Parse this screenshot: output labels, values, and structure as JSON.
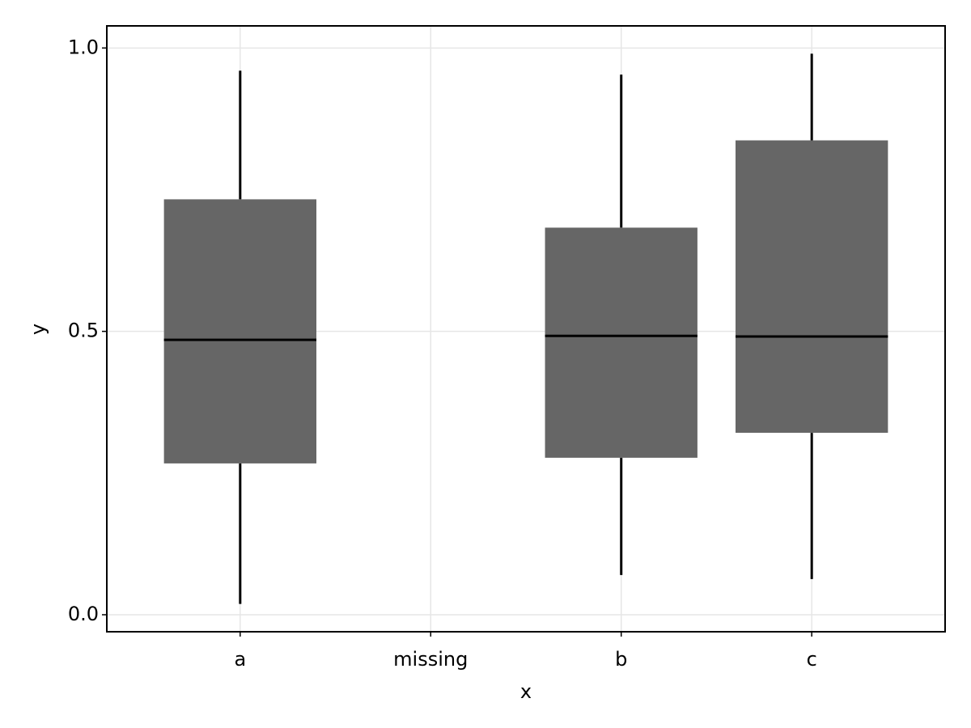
{
  "chart_data": {
    "type": "box",
    "x_label": "x",
    "y_label": "y",
    "categories": [
      "a",
      "missing",
      "b",
      "c"
    ],
    "min": [
      0.019,
      null,
      0.07,
      0.063
    ],
    "q1": [
      0.267,
      null,
      0.277,
      0.321
    ],
    "median": [
      0.485,
      null,
      0.492,
      0.491
    ],
    "q3": [
      0.733,
      null,
      0.683,
      0.837
    ],
    "max": [
      0.96,
      null,
      0.953,
      0.99
    ],
    "color": "#666666",
    "ylim": [
      -0.03,
      1.039
    ],
    "yticks": [
      {
        "value": 0,
        "label": "0.0"
      },
      {
        "value": 0.5,
        "label": "0.5"
      },
      {
        "value": 1,
        "label": "1.0"
      }
    ],
    "grid": true
  }
}
